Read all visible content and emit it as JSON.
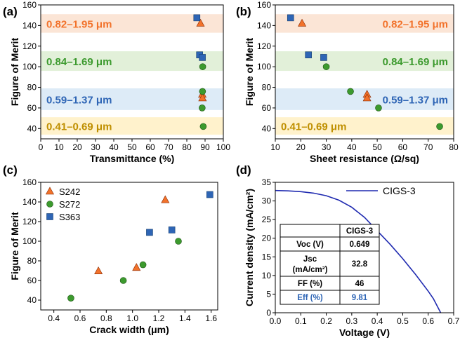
{
  "colors": {
    "orange": "#f2722b",
    "green": "#3c9a2e",
    "blue": "#2e65b5",
    "gold": "#bf8f00",
    "band_orange": "#fbe5d6",
    "band_green": "#e2f0d9",
    "band_blue": "#ddebf7",
    "band_gold": "#fff2cc",
    "line": "#1f2ab0"
  },
  "chart_data": [
    {
      "id": "a",
      "panel_label": "(a)",
      "type": "scatter",
      "xlabel": "Transmittance (%)",
      "ylabel": "Figure of Merit",
      "xlim": [
        0,
        100
      ],
      "ylim": [
        30,
        160
      ],
      "xticks": [
        "0",
        "10",
        "20",
        "30",
        "40",
        "50",
        "60",
        "70",
        "80",
        "90",
        "100"
      ],
      "yticks": [
        "40",
        "60",
        "80",
        "100",
        "120",
        "140",
        "160"
      ],
      "bands": [
        {
          "label": "0.82–1.95 μm",
          "y_range": [
            133,
            151
          ],
          "color": "orange"
        },
        {
          "label": "0.84–1.69 μm",
          "y_range": [
            96,
            115
          ],
          "color": "green"
        },
        {
          "label": "0.59–1.37 μm",
          "y_range": [
            58,
            79
          ],
          "color": "blue"
        },
        {
          "label": "0.41–0.69 μm",
          "y_range": [
            34,
            51
          ],
          "color": "gold"
        }
      ],
      "series": [
        {
          "name": "S242",
          "marker": "triangle",
          "color": "orange",
          "points": [
            [
              87.5,
              142
            ],
            [
              88.5,
              73
            ],
            [
              88.6,
              69.5
            ]
          ]
        },
        {
          "name": "S272",
          "marker": "circle",
          "color": "green",
          "points": [
            [
              88.7,
              100
            ],
            [
              88.6,
              76
            ],
            [
              88.4,
              60
            ],
            [
              89.0,
              42
            ]
          ]
        },
        {
          "name": "S363",
          "marker": "square",
          "color": "blue",
          "points": [
            [
              85.5,
              147.5
            ],
            [
              87.0,
              111.5
            ],
            [
              88.5,
              109
            ]
          ]
        }
      ]
    },
    {
      "id": "b",
      "panel_label": "(b)",
      "type": "scatter",
      "xlabel": "Sheet resistance (Ω/sq)",
      "ylabel": "Figure of Merit",
      "xlim": [
        10,
        80
      ],
      "ylim": [
        30,
        160
      ],
      "xticks": [
        "10",
        "20",
        "30",
        "40",
        "50",
        "60",
        "70",
        "80"
      ],
      "yticks": [
        "40",
        "60",
        "80",
        "100",
        "120",
        "140",
        "160"
      ],
      "bands": [
        {
          "label": "0.82–1.95 μm",
          "y_range": [
            133,
            151
          ],
          "color": "orange"
        },
        {
          "label": "0.84–1.69 μm",
          "y_range": [
            96,
            115
          ],
          "color": "green"
        },
        {
          "label": "0.59–1.37 μm",
          "y_range": [
            58,
            79
          ],
          "color": "blue"
        },
        {
          "label": "0.41–0.69 μm",
          "y_range": [
            34,
            51
          ],
          "color": "gold"
        }
      ],
      "series": [
        {
          "name": "S242",
          "marker": "triangle",
          "color": "orange",
          "points": [
            [
              20.5,
              142
            ],
            [
              46,
              73
            ],
            [
              46,
              69.5
            ]
          ]
        },
        {
          "name": "S272",
          "marker": "circle",
          "color": "green",
          "points": [
            [
              30,
              100
            ],
            [
              39.5,
              76
            ],
            [
              50.5,
              60
            ],
            [
              74.5,
              42
            ]
          ]
        },
        {
          "name": "S363",
          "marker": "square",
          "color": "blue",
          "points": [
            [
              16,
              147.5
            ],
            [
              23,
              111.5
            ],
            [
              29,
              109
            ]
          ]
        }
      ]
    },
    {
      "id": "c",
      "panel_label": "(c)",
      "type": "scatter",
      "xlabel": "Crack width (μm)",
      "ylabel": "Figure of Merit",
      "xlim": [
        0.3,
        1.65
      ],
      "ylim": [
        30,
        160
      ],
      "xticks": [
        "0.4",
        "0.6",
        "0.8",
        "1.0",
        "1.2",
        "1.4",
        "1.6"
      ],
      "yticks": [
        "40",
        "60",
        "80",
        "100",
        "120",
        "140",
        "160"
      ],
      "legend": "top-left",
      "series": [
        {
          "name": "S242",
          "marker": "triangle",
          "color": "orange",
          "points": [
            [
              0.74,
              69.5
            ],
            [
              1.03,
              73
            ],
            [
              1.25,
              142
            ]
          ]
        },
        {
          "name": "S272",
          "marker": "circle",
          "color": "green",
          "points": [
            [
              0.53,
              42
            ],
            [
              0.93,
              60
            ],
            [
              1.08,
              76
            ],
            [
              1.35,
              100
            ]
          ]
        },
        {
          "name": "S363",
          "marker": "square",
          "color": "blue",
          "points": [
            [
              1.13,
              109
            ],
            [
              1.3,
              111.5
            ],
            [
              1.59,
              147.5
            ]
          ]
        }
      ]
    },
    {
      "id": "d",
      "panel_label": "(d)",
      "type": "line",
      "xlabel": "Voltage (V)",
      "ylabel": "Current density (mA/cm²)",
      "xlim": [
        0,
        0.7
      ],
      "ylim": [
        0,
        35
      ],
      "xticks": [
        "0.0",
        "0.1",
        "0.2",
        "0.3",
        "0.4",
        "0.5",
        "0.6",
        "0.7"
      ],
      "yticks": [
        "0",
        "5",
        "10",
        "15",
        "20",
        "25",
        "30",
        "35"
      ],
      "legend": "top-right",
      "series": [
        {
          "name": "CIGS-3",
          "color": "line",
          "x": [
            0.0,
            0.05,
            0.1,
            0.15,
            0.2,
            0.25,
            0.3,
            0.35,
            0.4,
            0.45,
            0.5,
            0.55,
            0.6,
            0.62,
            0.649
          ],
          "y": [
            32.8,
            32.7,
            32.5,
            32.1,
            31.4,
            30.2,
            28.3,
            25.6,
            22.0,
            18.4,
            14.5,
            10.3,
            5.8,
            3.8,
            0.0
          ]
        }
      ],
      "table": {
        "header": [
          "",
          "CIGS-3"
        ],
        "rows": [
          {
            "label": "Voc (V)",
            "value": "0.649"
          },
          {
            "label": "Jsc",
            "label2": "(mA/cm²)",
            "value": "32.8"
          },
          {
            "label": "FF (%)",
            "value": "46"
          },
          {
            "label": "Eff (%)",
            "value": "9.81",
            "highlight": true
          }
        ]
      }
    }
  ]
}
